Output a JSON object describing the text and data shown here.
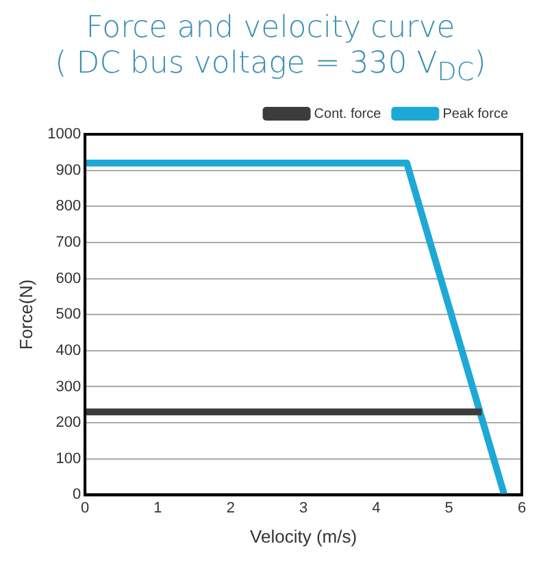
{
  "chart_data": {
    "type": "line",
    "title": "Force and velocity curve\n( DC bus voltage = 330 V$_{DC}$)",
    "xlabel": "Velocity (m/s)",
    "ylabel": "Force(N)",
    "series": [
      {
        "name": "Cont. force",
        "color": "#3c3c3c",
        "x": [
          0,
          5.45
        ],
        "values": [
          230,
          230
        ]
      },
      {
        "name": "Peak force",
        "color": "#1ea8d6",
        "x": [
          0,
          4.42,
          5.76
        ],
        "values": [
          920,
          920,
          0
        ]
      }
    ],
    "xlim": [
      0,
      6
    ],
    "xticks": [
      0,
      1,
      2,
      3,
      4,
      5,
      6
    ],
    "ylim": [
      0,
      1000
    ],
    "yticks": [
      0,
      100,
      200,
      300,
      400,
      500,
      600,
      700,
      800,
      900,
      1000
    ],
    "grid": "y",
    "legend": "top right",
    "marker": "none",
    "line_style": "solid"
  }
}
